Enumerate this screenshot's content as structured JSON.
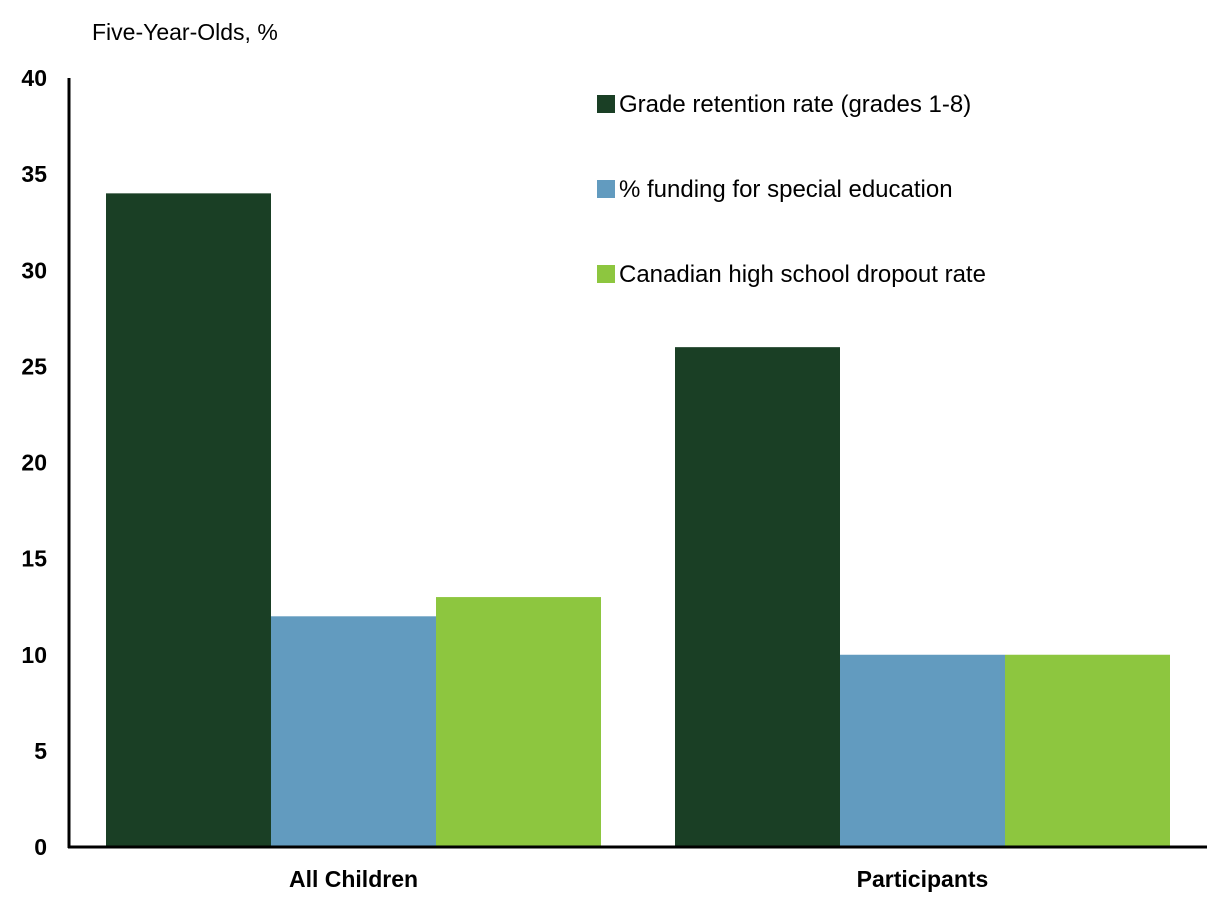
{
  "chart_data": {
    "type": "bar",
    "ylabel": "Five-Year-Olds, %",
    "categories": [
      "All Children",
      "Participants"
    ],
    "series": [
      {
        "name": "Grade retention rate (grades 1-8)",
        "values": [
          34,
          26
        ],
        "color": "#1a3f25"
      },
      {
        "name": "% funding for special education",
        "values": [
          12,
          10
        ],
        "color": "#629bbf"
      },
      {
        "name": "Canadian high school dropout rate",
        "values": [
          13,
          10
        ],
        "color": "#8dc63f"
      }
    ],
    "ylim": [
      0,
      40
    ],
    "yticks": [
      "0",
      "5",
      "10",
      "15",
      "20",
      "25",
      "30",
      "35",
      "40"
    ],
    "grid": false,
    "legend_position": "top-right"
  }
}
